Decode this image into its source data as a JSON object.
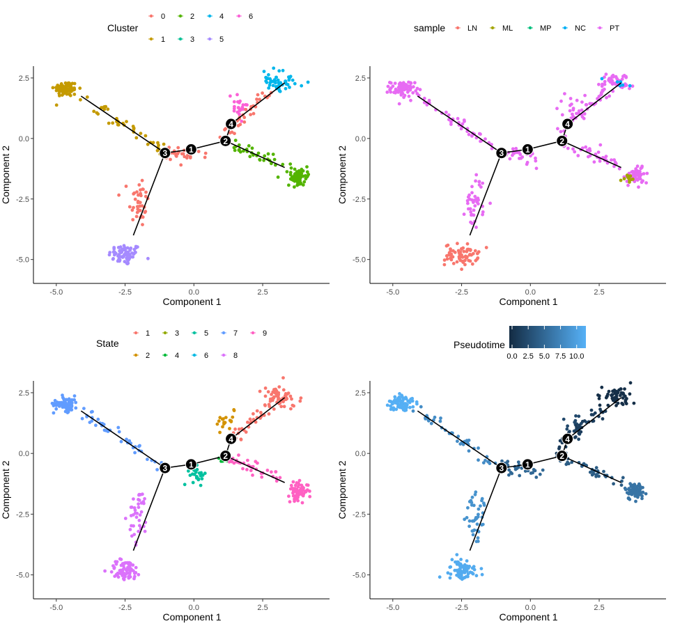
{
  "colors": {
    "cluster": [
      "#F8766D",
      "#C49A00",
      "#53B400",
      "#00C094",
      "#00B6EB",
      "#A58AFF",
      "#FB61D7"
    ],
    "sample": [
      "#F8766D",
      "#A3A500",
      "#00BF7D",
      "#00B0F6",
      "#E76BF3"
    ],
    "state": [
      "#F8766D",
      "#D39200",
      "#93AA00",
      "#00BA38",
      "#00C19F",
      "#00B9E3",
      "#619CFF",
      "#DB72FB",
      "#FF61C3"
    ],
    "pseudotime_low": "#132B43",
    "pseudotime_high": "#56B1F7",
    "tree": "#000000",
    "node_fill": "#000000"
  },
  "chart_data": [
    {
      "type": "scatter",
      "panel": "cluster",
      "xlabel": "Component 1",
      "ylabel": "Component 2",
      "xlim": [
        -5.4,
        4.6
      ],
      "ylim": [
        -5.7,
        2.7
      ],
      "xticks": [
        -5.0,
        -2.5,
        0.0,
        2.5
      ],
      "xtick_labels": [
        "-5.0",
        "-2.5",
        "0.0",
        "2.5"
      ],
      "yticks": [
        -5.0,
        -2.5,
        0.0,
        2.5
      ],
      "ytick_labels": [
        "-5.0",
        "-2.5",
        "0.0",
        "2.5"
      ],
      "grid": false,
      "legend": {
        "title": "Cluster",
        "position": "top",
        "entries": [
          "0",
          "1",
          "2",
          "3",
          "4",
          "5",
          "6"
        ]
      },
      "branch_nodes": [
        {
          "label": "1",
          "x": -0.1,
          "y": -0.45
        },
        {
          "label": "2",
          "x": 1.15,
          "y": -0.1
        },
        {
          "label": "3",
          "x": -1.05,
          "y": -0.6
        },
        {
          "label": "4",
          "x": 1.35,
          "y": 0.6
        }
      ],
      "tree_edges": [
        [
          [
            -4.1,
            1.75
          ],
          [
            -1.05,
            -0.6
          ]
        ],
        [
          [
            -1.05,
            -0.6
          ],
          [
            -0.1,
            -0.45
          ]
        ],
        [
          [
            -0.1,
            -0.45
          ],
          [
            1.15,
            -0.1
          ]
        ],
        [
          [
            1.15,
            -0.1
          ],
          [
            1.35,
            0.6
          ]
        ],
        [
          [
            1.35,
            0.6
          ],
          [
            3.3,
            2.3
          ]
        ],
        [
          [
            1.15,
            -0.1
          ],
          [
            3.3,
            -1.2
          ]
        ],
        [
          [
            -1.05,
            -0.6
          ],
          [
            -2.2,
            -4.0
          ]
        ]
      ],
      "groups": [
        {
          "name": "5",
          "color_index": 5,
          "cx": -2.5,
          "cy": -4.8,
          "sx": 0.3,
          "sy": 0.22,
          "n": 70
        },
        {
          "name": "0",
          "color_index": 0,
          "cx": -2.0,
          "cy": -2.6,
          "sx": 0.18,
          "sy": 0.55,
          "n": 40
        },
        {
          "name": "1",
          "color_index": 1,
          "cx": -4.65,
          "cy": 2.05,
          "sx": 0.22,
          "sy": 0.16,
          "n": 75
        },
        {
          "name": "1",
          "color_index": 1,
          "x0": -4.1,
          "y0": 1.75,
          "x1": -1.2,
          "y1": -0.5,
          "spread": 0.12,
          "n": 40
        },
        {
          "name": "0",
          "color_index": 0,
          "x0": -1.0,
          "y0": -0.55,
          "x1": 0.3,
          "y1": -0.8,
          "spread": 0.15,
          "n": 30
        },
        {
          "name": "2",
          "color_index": 2,
          "cx": 3.8,
          "cy": -1.55,
          "sx": 0.18,
          "sy": 0.18,
          "n": 70
        },
        {
          "name": "2",
          "color_index": 2,
          "x0": 1.2,
          "y0": -0.2,
          "x1": 3.4,
          "y1": -1.2,
          "spread": 0.13,
          "n": 35
        },
        {
          "name": "4",
          "color_index": 4,
          "cx": 3.1,
          "cy": 2.35,
          "sx": 0.3,
          "sy": 0.2,
          "n": 55
        },
        {
          "name": "6",
          "color_index": 6,
          "cx": 1.6,
          "cy": 1.2,
          "sx": 0.25,
          "sy": 0.3,
          "n": 22
        },
        {
          "name": "0",
          "color_index": 0,
          "x0": 1.0,
          "y0": 0.1,
          "x1": 2.8,
          "y1": 2.0,
          "spread": 0.12,
          "n": 35
        }
      ]
    },
    {
      "type": "scatter",
      "panel": "sample",
      "xlabel": "Component 1",
      "ylabel": "Component 2",
      "xlim": [
        -5.4,
        4.6
      ],
      "ylim": [
        -5.7,
        2.7
      ],
      "xticks": [
        -5.0,
        -2.5,
        0.0,
        2.5
      ],
      "xtick_labels": [
        "-5.0",
        "-2.5",
        "0.0",
        "2.5"
      ],
      "yticks": [
        -5.0,
        -2.5,
        0.0,
        2.5
      ],
      "ytick_labels": [
        "-5.0",
        "-2.5",
        "0.0",
        "2.5"
      ],
      "grid": false,
      "legend": {
        "title": "sample",
        "position": "top",
        "entries": [
          "LN",
          "ML",
          "MP",
          "NC",
          "PT"
        ]
      },
      "branch_nodes": [
        {
          "label": "1",
          "x": -0.1,
          "y": -0.45
        },
        {
          "label": "2",
          "x": 1.15,
          "y": -0.1
        },
        {
          "label": "3",
          "x": -1.05,
          "y": -0.6
        },
        {
          "label": "4",
          "x": 1.35,
          "y": 0.6
        }
      ],
      "tree_edges": [
        [
          [
            -4.1,
            1.75
          ],
          [
            -1.05,
            -0.6
          ]
        ],
        [
          [
            -1.05,
            -0.6
          ],
          [
            -0.1,
            -0.45
          ]
        ],
        [
          [
            -0.1,
            -0.45
          ],
          [
            1.15,
            -0.1
          ]
        ],
        [
          [
            1.15,
            -0.1
          ],
          [
            1.35,
            0.6
          ]
        ],
        [
          [
            1.35,
            0.6
          ],
          [
            3.3,
            2.3
          ]
        ],
        [
          [
            1.15,
            -0.1
          ],
          [
            3.3,
            -1.2
          ]
        ],
        [
          [
            -1.05,
            -0.6
          ],
          [
            -2.2,
            -4.0
          ]
        ]
      ],
      "groups": [
        {
          "name": "LN",
          "color_index": 0,
          "cx": -2.5,
          "cy": -4.8,
          "sx": 0.3,
          "sy": 0.22,
          "n": 70
        },
        {
          "name": "PT",
          "color_index": 4,
          "cx": -2.0,
          "cy": -2.6,
          "sx": 0.18,
          "sy": 0.55,
          "n": 40
        },
        {
          "name": "PT",
          "color_index": 4,
          "cx": -4.65,
          "cy": 2.05,
          "sx": 0.22,
          "sy": 0.16,
          "n": 75
        },
        {
          "name": "PT",
          "color_index": 4,
          "x0": -4.1,
          "y0": 1.75,
          "x1": -1.2,
          "y1": -0.5,
          "spread": 0.12,
          "n": 40
        },
        {
          "name": "PT",
          "color_index": 4,
          "x0": -1.0,
          "y0": -0.55,
          "x1": 0.3,
          "y1": -0.8,
          "spread": 0.15,
          "n": 30
        },
        {
          "name": "PT",
          "color_index": 4,
          "cx": 3.8,
          "cy": -1.55,
          "sx": 0.18,
          "sy": 0.18,
          "n": 60
        },
        {
          "name": "ML",
          "color_index": 1,
          "cx": 3.6,
          "cy": -1.7,
          "sx": 0.12,
          "sy": 0.15,
          "n": 12
        },
        {
          "name": "PT",
          "color_index": 4,
          "x0": 1.2,
          "y0": -0.2,
          "x1": 3.4,
          "y1": -1.2,
          "spread": 0.13,
          "n": 35
        },
        {
          "name": "PT",
          "color_index": 4,
          "cx": 3.1,
          "cy": 2.35,
          "sx": 0.3,
          "sy": 0.2,
          "n": 55
        },
        {
          "name": "PT",
          "color_index": 4,
          "cx": 1.6,
          "cy": 1.2,
          "sx": 0.25,
          "sy": 0.3,
          "n": 22
        },
        {
          "name": "PT",
          "color_index": 4,
          "x0": 1.0,
          "y0": 0.1,
          "x1": 2.8,
          "y1": 2.0,
          "spread": 0.12,
          "n": 35
        },
        {
          "name": "NC",
          "color_index": 3,
          "cx": 3.2,
          "cy": 2.3,
          "sx": 0.3,
          "sy": 0.15,
          "n": 6
        }
      ]
    },
    {
      "type": "scatter",
      "panel": "state",
      "xlabel": "Component 1",
      "ylabel": "Component 2",
      "xlim": [
        -5.4,
        4.6
      ],
      "ylim": [
        -5.7,
        2.7
      ],
      "xticks": [
        -5.0,
        -2.5,
        0.0,
        2.5
      ],
      "xtick_labels": [
        "-5.0",
        "-2.5",
        "0.0",
        "2.5"
      ],
      "yticks": [
        -5.0,
        -2.5,
        0.0,
        2.5
      ],
      "ytick_labels": [
        "-5.0",
        "-2.5",
        "0.0",
        "2.5"
      ],
      "grid": false,
      "legend": {
        "title": "State",
        "position": "top",
        "entries": [
          "1",
          "2",
          "3",
          "4",
          "5",
          "6",
          "7",
          "8",
          "9"
        ]
      },
      "branch_nodes": [
        {
          "label": "1",
          "x": -0.1,
          "y": -0.45
        },
        {
          "label": "2",
          "x": 1.15,
          "y": -0.1
        },
        {
          "label": "3",
          "x": -1.05,
          "y": -0.6
        },
        {
          "label": "4",
          "x": 1.35,
          "y": 0.6
        }
      ],
      "tree_edges": [
        [
          [
            -4.1,
            1.75
          ],
          [
            -1.05,
            -0.6
          ]
        ],
        [
          [
            -1.05,
            -0.6
          ],
          [
            -0.1,
            -0.45
          ]
        ],
        [
          [
            -0.1,
            -0.45
          ],
          [
            1.15,
            -0.1
          ]
        ],
        [
          [
            1.15,
            -0.1
          ],
          [
            1.35,
            0.6
          ]
        ],
        [
          [
            1.35,
            0.6
          ],
          [
            3.3,
            2.3
          ]
        ],
        [
          [
            1.15,
            -0.1
          ],
          [
            3.3,
            -1.2
          ]
        ],
        [
          [
            -1.05,
            -0.6
          ],
          [
            -2.2,
            -4.0
          ]
        ]
      ],
      "groups": [
        {
          "name": "8",
          "color_index": 7,
          "cx": -2.5,
          "cy": -4.8,
          "sx": 0.3,
          "sy": 0.22,
          "n": 70
        },
        {
          "name": "8",
          "color_index": 7,
          "cx": -2.0,
          "cy": -2.6,
          "sx": 0.18,
          "sy": 0.55,
          "n": 40
        },
        {
          "name": "7",
          "color_index": 6,
          "cx": -4.65,
          "cy": 2.05,
          "sx": 0.22,
          "sy": 0.16,
          "n": 75
        },
        {
          "name": "7",
          "color_index": 6,
          "x0": -4.1,
          "y0": 1.75,
          "x1": -1.2,
          "y1": -0.5,
          "spread": 0.12,
          "n": 40
        },
        {
          "name": "5",
          "color_index": 4,
          "cx": 0.15,
          "cy": -0.9,
          "sx": 0.15,
          "sy": 0.18,
          "n": 25
        },
        {
          "name": "4",
          "color_index": 3,
          "cx": 1.1,
          "cy": -0.2,
          "sx": 0.12,
          "sy": 0.1,
          "n": 10
        },
        {
          "name": "9",
          "color_index": 8,
          "cx": 3.8,
          "cy": -1.55,
          "sx": 0.18,
          "sy": 0.18,
          "n": 70
        },
        {
          "name": "9",
          "color_index": 8,
          "x0": 1.3,
          "y0": -0.2,
          "x1": 3.4,
          "y1": -1.2,
          "spread": 0.13,
          "n": 35
        },
        {
          "name": "1",
          "color_index": 0,
          "cx": 3.1,
          "cy": 2.35,
          "sx": 0.3,
          "sy": 0.2,
          "n": 55
        },
        {
          "name": "2",
          "color_index": 1,
          "cx": 1.2,
          "cy": 1.2,
          "sx": 0.15,
          "sy": 0.25,
          "n": 18
        },
        {
          "name": "1",
          "color_index": 0,
          "x0": 1.4,
          "y0": 0.6,
          "x1": 2.8,
          "y1": 2.0,
          "spread": 0.12,
          "n": 35
        }
      ]
    },
    {
      "type": "scatter",
      "panel": "pseudotime",
      "xlabel": "Component 1",
      "ylabel": "Component 2",
      "xlim": [
        -5.4,
        4.6
      ],
      "ylim": [
        -5.7,
        2.7
      ],
      "xticks": [
        -5.0,
        -2.5,
        0.0,
        2.5
      ],
      "xtick_labels": [
        "-5.0",
        "-2.5",
        "0.0",
        "2.5"
      ],
      "yticks": [
        -5.0,
        -2.5,
        0.0,
        2.5
      ],
      "ytick_labels": [
        "-5.0",
        "-2.5",
        "0.0",
        "2.5"
      ],
      "grid": false,
      "legend": {
        "title": "Pseudotime",
        "position": "top",
        "type": "colorbar",
        "min": 0,
        "max": 11,
        "ticks": [
          "0.0",
          "2.5",
          "5.0",
          "7.5",
          "10.0"
        ]
      },
      "branch_nodes": [
        {
          "label": "1",
          "x": -0.1,
          "y": -0.45
        },
        {
          "label": "2",
          "x": 1.15,
          "y": -0.1
        },
        {
          "label": "3",
          "x": -1.05,
          "y": -0.6
        },
        {
          "label": "4",
          "x": 1.35,
          "y": 0.6
        }
      ],
      "tree_edges": [
        [
          [
            -4.1,
            1.75
          ],
          [
            -1.05,
            -0.6
          ]
        ],
        [
          [
            -1.05,
            -0.6
          ],
          [
            -0.1,
            -0.45
          ]
        ],
        [
          [
            -0.1,
            -0.45
          ],
          [
            1.15,
            -0.1
          ]
        ],
        [
          [
            1.15,
            -0.1
          ],
          [
            1.35,
            0.6
          ]
        ],
        [
          [
            1.35,
            0.6
          ],
          [
            3.3,
            2.3
          ]
        ],
        [
          [
            1.15,
            -0.1
          ],
          [
            3.3,
            -1.2
          ]
        ],
        [
          [
            -1.05,
            -0.6
          ],
          [
            -2.2,
            -4.0
          ]
        ]
      ],
      "groups": [
        {
          "pseudotime": 10.5,
          "cx": -2.5,
          "cy": -4.8,
          "sx": 0.3,
          "sy": 0.22,
          "n": 70
        },
        {
          "pseudotime": 8.5,
          "cx": -2.0,
          "cy": -2.6,
          "sx": 0.18,
          "sy": 0.55,
          "n": 40
        },
        {
          "pseudotime": 10.8,
          "cx": -4.65,
          "cy": 2.05,
          "sx": 0.22,
          "sy": 0.16,
          "n": 75
        },
        {
          "pseudotime": 8.0,
          "x0": -4.1,
          "y0": 1.75,
          "x1": -1.2,
          "y1": -0.5,
          "spread": 0.12,
          "n": 40
        },
        {
          "pseudotime": 5.0,
          "x0": -1.0,
          "y0": -0.55,
          "x1": 0.3,
          "y1": -0.8,
          "spread": 0.15,
          "n": 30
        },
        {
          "pseudotime": 6.0,
          "cx": 3.8,
          "cy": -1.55,
          "sx": 0.18,
          "sy": 0.18,
          "n": 70
        },
        {
          "pseudotime": 4.0,
          "x0": 1.2,
          "y0": -0.2,
          "x1": 3.4,
          "y1": -1.2,
          "spread": 0.13,
          "n": 35
        },
        {
          "pseudotime": 0.3,
          "cx": 3.1,
          "cy": 2.35,
          "sx": 0.3,
          "sy": 0.2,
          "n": 55
        },
        {
          "pseudotime": 2.5,
          "cx": 1.6,
          "cy": 1.2,
          "sx": 0.25,
          "sy": 0.3,
          "n": 22
        },
        {
          "pseudotime": 1.5,
          "x0": 1.0,
          "y0": 0.1,
          "x1": 2.8,
          "y1": 2.0,
          "spread": 0.12,
          "n": 35
        }
      ]
    }
  ]
}
